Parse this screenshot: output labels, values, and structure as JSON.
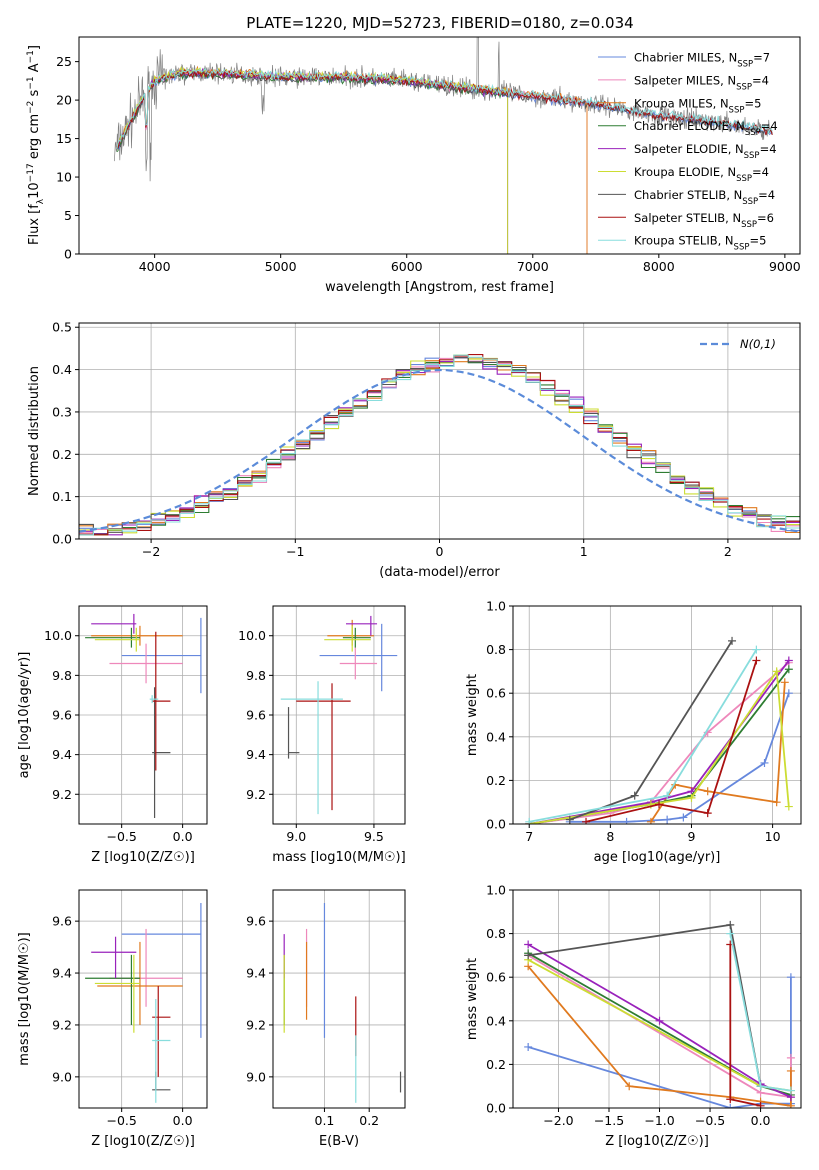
{
  "title": "PLATE=1220, MJD=52723, FIBERID=0180, z=0.034",
  "colors": {
    "chabrier_miles": "#6688dd",
    "salpeter_miles": "#ee88bb",
    "kroupa_miles": "#e07a1f",
    "chabrier_elodie": "#2e7d32",
    "salpeter_elodie": "#9922bb",
    "kroupa_elodie": "#ccdd33",
    "chabrier_stelib": "#555555",
    "salpeter_stelib": "#aa1111",
    "kroupa_stelib": "#88dddd",
    "data": "#808080",
    "normal": "#5b8bd9"
  },
  "chart_data": [
    {
      "type": "line",
      "panel": "spectrum",
      "title": "PLATE=1220, MJD=52723, FIBERID=0180, z=0.034",
      "xlabel": "wavelength [Angstrom, rest frame]",
      "ylabel_parts": [
        "Flux [f",
        "λ",
        "10",
        "−17",
        " erg cm",
        "−2",
        " s",
        "−1",
        " A",
        "−1",
        "]"
      ],
      "xlim": [
        3400,
        9120
      ],
      "ylim": [
        0,
        28.2
      ],
      "xticks": [
        4000,
        5000,
        6000,
        7000,
        8000,
        9000
      ],
      "yticks": [
        0,
        5,
        10,
        15,
        20,
        25
      ],
      "legend_position": "top-right",
      "data_continuum": {
        "x": [
          3680,
          3800,
          3900,
          4000,
          4200,
          4500,
          5000,
          5500,
          6000,
          6500,
          7000,
          7500,
          8000,
          8500,
          8900
        ],
        "y": [
          13,
          17,
          20,
          22.5,
          23.5,
          23.5,
          23,
          23,
          22.5,
          21.5,
          20.5,
          19.5,
          18,
          17,
          16
        ]
      },
      "legend": [
        {
          "key": "chabrier_miles",
          "prefix": "Chabrier MILES, N",
          "sub": "SSP",
          "suffix": "=7"
        },
        {
          "key": "salpeter_miles",
          "prefix": "Salpeter MILES, N",
          "sub": "SSP",
          "suffix": "=4"
        },
        {
          "key": "kroupa_miles",
          "prefix": "Kroupa MILES, N",
          "sub": "SSP",
          "suffix": "=5"
        },
        {
          "key": "chabrier_elodie",
          "prefix": "Chabrier ELODIE, N",
          "sub": "SSP",
          "suffix": "=4"
        },
        {
          "key": "salpeter_elodie",
          "prefix": "Salpeter ELODIE, N",
          "sub": "SSP",
          "suffix": "=4"
        },
        {
          "key": "kroupa_elodie",
          "prefix": "Kroupa ELODIE, N",
          "sub": "SSP",
          "suffix": "=4"
        },
        {
          "key": "chabrier_stelib",
          "prefix": "Chabrier STELIB, N",
          "sub": "SSP",
          "suffix": "=4"
        },
        {
          "key": "salpeter_stelib",
          "prefix": "Salpeter STELIB, N",
          "sub": "SSP",
          "suffix": "=6"
        },
        {
          "key": "kroupa_stelib",
          "prefix": "Kroupa STELIB, N",
          "sub": "SSP",
          "suffix": "=5"
        }
      ]
    },
    {
      "type": "histogram",
      "panel": "residuals",
      "xlabel": "(data-model)/error",
      "ylabel": "Normed distribution",
      "xlim": [
        -2.5,
        2.5
      ],
      "ylim": [
        0,
        0.51
      ],
      "xticks": [
        -2,
        -1,
        0,
        1,
        2
      ],
      "yticks": [
        0.0,
        0.1,
        0.2,
        0.3,
        0.4,
        0.5
      ],
      "bin_width": 0.1,
      "normal_label": "N(0,1)",
      "legend_position": "top-right"
    },
    {
      "type": "scatter",
      "panel": "age-vs-Z",
      "xlabel": "Z [log10(Z/Z☉)]",
      "ylabel": "age  [log10(age/yr)]",
      "xlim": [
        -0.85,
        0.2
      ],
      "ylim": [
        9.05,
        10.15
      ],
      "xticks": [
        -0.5,
        0.0
      ],
      "yticks": [
        9.2,
        9.4,
        9.6,
        9.8,
        10.0
      ],
      "points": [
        {
          "key": "chabrier_miles",
          "x": 0.15,
          "y": 9.9,
          "xerr": 0.0,
          "yerr": 0.19,
          "xr": [
            -0.5,
            0.15
          ]
        },
        {
          "key": "salpeter_miles",
          "x": -0.3,
          "y": 9.86,
          "xerr": 0.0,
          "yerr": 0.1,
          "xr": [
            -0.6,
            0.0
          ]
        },
        {
          "key": "kroupa_miles",
          "x": -0.35,
          "y": 10.0,
          "xerr": 0.0,
          "yerr": 0.05,
          "xr": [
            -0.75,
            0.0
          ]
        },
        {
          "key": "chabrier_elodie",
          "x": -0.42,
          "y": 9.99,
          "xerr": 0.0,
          "yerr": 0.05,
          "xr": [
            -0.8,
            -0.35
          ]
        },
        {
          "key": "salpeter_elodie",
          "x": -0.4,
          "y": 10.06,
          "xerr": 0.0,
          "yerr": 0.05,
          "xr": [
            -0.75,
            -0.38
          ]
        },
        {
          "key": "kroupa_elodie",
          "x": -0.38,
          "y": 9.98,
          "xerr": 0.0,
          "yerr": 0.06,
          "xr": [
            -0.72,
            -0.35
          ]
        },
        {
          "key": "chabrier_stelib",
          "x": -0.23,
          "y": 9.41,
          "xerr": 0.0,
          "yerr": 0.33,
          "xr": [
            -0.25,
            -0.1
          ]
        },
        {
          "key": "salpeter_stelib",
          "x": -0.22,
          "y": 9.67,
          "xerr": 0.0,
          "yerr": 0.35,
          "xr": [
            -0.25,
            -0.1
          ]
        },
        {
          "key": "kroupa_stelib",
          "x": -0.25,
          "y": 9.68,
          "xerr": 0.0,
          "yerr": 0.02,
          "xr": [
            -0.27,
            -0.2
          ]
        }
      ]
    },
    {
      "type": "scatter",
      "panel": "age-vs-mass",
      "xlabel": "mass [log10(M/M☉)]",
      "xlim": [
        8.85,
        9.7
      ],
      "ylim": [
        9.05,
        10.15
      ],
      "xticks": [
        9.0,
        9.5
      ],
      "yticks": [
        9.2,
        9.4,
        9.6,
        9.8,
        10.0
      ],
      "points": [
        {
          "key": "chabrier_miles",
          "x": 9.55,
          "y": 9.9,
          "xr": [
            9.15,
            9.65
          ],
          "yr": [
            9.72,
            10.06
          ]
        },
        {
          "key": "salpeter_miles",
          "x": 9.38,
          "y": 9.86,
          "xr": [
            9.28,
            9.52
          ],
          "yr": [
            9.78,
            9.94
          ]
        },
        {
          "key": "kroupa_miles",
          "x": 9.36,
          "y": 10.0,
          "xr": [
            9.2,
            9.5
          ],
          "yr": [
            9.95,
            10.08
          ]
        },
        {
          "key": "chabrier_elodie",
          "x": 9.38,
          "y": 9.99,
          "xr": [
            9.3,
            9.48
          ],
          "yr": [
            9.94,
            10.04
          ]
        },
        {
          "key": "salpeter_elodie",
          "x": 9.48,
          "y": 10.06,
          "xr": [
            9.32,
            9.52
          ],
          "yr": [
            10.0,
            10.1
          ]
        },
        {
          "key": "kroupa_elodie",
          "x": 9.36,
          "y": 9.98,
          "xr": [
            9.18,
            9.48
          ],
          "yr": [
            9.92,
            10.05
          ]
        },
        {
          "key": "chabrier_stelib",
          "x": 8.95,
          "y": 9.41,
          "xr": [
            8.95,
            9.02
          ],
          "yr": [
            9.38,
            9.64
          ]
        },
        {
          "key": "salpeter_stelib",
          "x": 9.23,
          "y": 9.67,
          "xr": [
            9.0,
            9.35
          ],
          "yr": [
            9.12,
            9.76
          ]
        },
        {
          "key": "kroupa_stelib",
          "x": 9.14,
          "y": 9.68,
          "xr": [
            8.9,
            9.3
          ],
          "yr": [
            9.1,
            9.77
          ]
        }
      ]
    },
    {
      "type": "line",
      "panel": "mass-weight-vs-age",
      "xlabel": "age  [log10(age/yr)]",
      "ylabel": "mass weight",
      "xlim": [
        6.8,
        10.35
      ],
      "ylim": [
        0,
        1.0
      ],
      "xticks": [
        7,
        8,
        9,
        10
      ],
      "yticks": [
        0.0,
        0.2,
        0.4,
        0.6,
        0.8,
        1.0
      ],
      "series": [
        {
          "key": "chabrier_miles",
          "x": [
            7.5,
            8.2,
            8.7,
            8.9,
            9.9,
            10.2
          ],
          "y": [
            0.01,
            0.01,
            0.02,
            0.03,
            0.28,
            0.6
          ]
        },
        {
          "key": "salpeter_miles",
          "x": [
            7.0,
            8.0,
            8.5,
            9.2,
            10.2
          ],
          "y": [
            0.0,
            0.05,
            0.1,
            0.42,
            0.74
          ]
        },
        {
          "key": "kroupa_miles",
          "x": [
            8.5,
            8.8,
            9.2,
            10.05,
            10.15
          ],
          "y": [
            0.01,
            0.18,
            0.15,
            0.1,
            0.65
          ]
        },
        {
          "key": "chabrier_elodie",
          "x": [
            7.0,
            8.5,
            9.0,
            10.2
          ],
          "y": [
            0.0,
            0.09,
            0.13,
            0.71
          ]
        },
        {
          "key": "salpeter_elodie",
          "x": [
            7.0,
            8.5,
            9.0,
            10.2
          ],
          "y": [
            0.0,
            0.1,
            0.15,
            0.75
          ]
        },
        {
          "key": "kroupa_elodie",
          "x": [
            7.0,
            8.5,
            9.0,
            10.05,
            10.2
          ],
          "y": [
            0.0,
            0.09,
            0.12,
            0.7,
            0.08
          ]
        },
        {
          "key": "chabrier_stelib",
          "x": [
            7.5,
            8.3,
            9.5
          ],
          "y": [
            0.02,
            0.13,
            0.84
          ]
        },
        {
          "key": "salpeter_stelib",
          "x": [
            7.7,
            8.6,
            9.2,
            9.8
          ],
          "y": [
            0.01,
            0.09,
            0.05,
            0.75
          ]
        },
        {
          "key": "kroupa_stelib",
          "x": [
            7.0,
            8.7,
            9.8
          ],
          "y": [
            0.01,
            0.13,
            0.8
          ]
        }
      ]
    },
    {
      "type": "scatter",
      "panel": "mass-vs-Z",
      "xlabel": "Z [log10(Z/Z☉)]",
      "ylabel": "mass [log10(M/M☉)]",
      "xlim": [
        -0.85,
        0.2
      ],
      "ylim": [
        8.88,
        9.72
      ],
      "xticks": [
        -0.5,
        0.0
      ],
      "yticks": [
        9.0,
        9.2,
        9.4,
        9.6
      ],
      "points": [
        {
          "key": "chabrier_miles",
          "x": 0.15,
          "y": 9.55,
          "xr": [
            -0.5,
            0.15
          ],
          "yr": [
            9.15,
            9.67
          ]
        },
        {
          "key": "salpeter_miles",
          "x": -0.3,
          "y": 9.38,
          "xr": [
            -0.6,
            0.0
          ],
          "yr": [
            9.27,
            9.57
          ]
        },
        {
          "key": "kroupa_miles",
          "x": -0.35,
          "y": 9.35,
          "xr": [
            -0.7,
            0.0
          ],
          "yr": [
            9.2,
            9.52
          ]
        },
        {
          "key": "chabrier_elodie",
          "x": -0.42,
          "y": 9.38,
          "xr": [
            -0.8,
            -0.35
          ],
          "yr": [
            9.2,
            9.47
          ]
        },
        {
          "key": "salpeter_elodie",
          "x": -0.55,
          "y": 9.48,
          "xr": [
            -0.75,
            -0.38
          ],
          "yr": [
            9.38,
            9.54
          ]
        },
        {
          "key": "kroupa_elodie",
          "x": -0.4,
          "y": 9.36,
          "xr": [
            -0.72,
            -0.35
          ],
          "yr": [
            9.17,
            9.47
          ]
        },
        {
          "key": "chabrier_stelib",
          "x": -0.22,
          "y": 8.95,
          "xr": [
            -0.25,
            -0.1
          ],
          "yr": [
            8.95,
            9.02
          ]
        },
        {
          "key": "salpeter_stelib",
          "x": -0.2,
          "y": 9.23,
          "xr": [
            -0.25,
            -0.1
          ],
          "yr": [
            9.0,
            9.35
          ]
        },
        {
          "key": "kroupa_stelib",
          "x": -0.22,
          "y": 9.14,
          "xr": [
            -0.25,
            -0.1
          ],
          "yr": [
            8.9,
            9.3
          ]
        }
      ]
    },
    {
      "type": "scatter",
      "panel": "mass-vs-ebv",
      "xlabel": "E(B-V)",
      "xlim": [
        -0.015,
        0.28
      ],
      "ylim": [
        8.88,
        9.72
      ],
      "xticks": [
        0.1,
        0.2
      ],
      "yticks": [
        9.0,
        9.2,
        9.4,
        9.6
      ],
      "points": [
        {
          "key": "chabrier_miles",
          "x": 0.1,
          "yr": [
            9.15,
            9.67
          ]
        },
        {
          "key": "salpeter_miles",
          "x": 0.06,
          "yr": [
            9.27,
            9.57
          ]
        },
        {
          "key": "kroupa_miles",
          "x": 0.06,
          "yr": [
            9.22,
            9.52
          ]
        },
        {
          "key": "chabrier_elodie",
          "x": 0.01,
          "yr": [
            9.2,
            9.47
          ]
        },
        {
          "key": "salpeter_elodie",
          "x": 0.01,
          "yr": [
            9.38,
            9.55
          ]
        },
        {
          "key": "kroupa_elodie",
          "x": 0.01,
          "yr": [
            9.17,
            9.47
          ]
        },
        {
          "key": "chabrier_stelib",
          "x": 0.27,
          "yr": [
            8.94,
            9.02
          ]
        },
        {
          "key": "salpeter_stelib",
          "x": 0.17,
          "yr": [
            9.08,
            9.31
          ]
        },
        {
          "key": "kroupa_stelib",
          "x": 0.17,
          "yr": [
            8.9,
            9.16
          ]
        }
      ]
    },
    {
      "type": "line",
      "panel": "mass-weight-vs-Z",
      "xlabel": "Z [log10(Z/Z☉)]",
      "ylabel": "mass weight",
      "xlim": [
        -2.45,
        0.4
      ],
      "ylim": [
        0,
        1.0
      ],
      "xticks": [
        -2.0,
        -1.5,
        -1.0,
        -0.5,
        0.0
      ],
      "yticks": [
        0.0,
        0.2,
        0.4,
        0.6,
        0.8,
        1.0
      ],
      "series": [
        {
          "key": "chabrier_miles",
          "x": [
            -2.3,
            -0.3,
            0.0,
            0.3,
            0.3
          ],
          "y": [
            0.28,
            0.0,
            0.02,
            0.02,
            0.6
          ]
        },
        {
          "key": "salpeter_miles",
          "x": [
            -2.3,
            0.0,
            0.3,
            0.3
          ],
          "y": [
            0.7,
            0.07,
            0.05,
            0.23
          ]
        },
        {
          "key": "kroupa_miles",
          "x": [
            -2.3,
            -1.3,
            -0.3,
            0.0,
            0.3,
            0.3
          ],
          "y": [
            0.65,
            0.1,
            0.05,
            0.03,
            0.01,
            0.17
          ]
        },
        {
          "key": "chabrier_elodie",
          "x": [
            -2.3,
            0.0,
            0.3
          ],
          "y": [
            0.71,
            0.1,
            0.06
          ]
        },
        {
          "key": "salpeter_elodie",
          "x": [
            -2.3,
            -1.0,
            0.0,
            0.3
          ],
          "y": [
            0.75,
            0.4,
            0.11,
            0.05
          ]
        },
        {
          "key": "kroupa_elodie",
          "x": [
            -2.3,
            0.0,
            0.3
          ],
          "y": [
            0.68,
            0.1,
            0.08
          ]
        },
        {
          "key": "chabrier_stelib",
          "x": [
            -2.3,
            -0.3,
            0.0
          ],
          "y": [
            0.7,
            0.84,
            0.1
          ]
        },
        {
          "key": "salpeter_stelib",
          "x": [
            -0.3,
            -0.3,
            0.0
          ],
          "y": [
            0.75,
            0.04,
            0.01
          ]
        },
        {
          "key": "kroupa_stelib",
          "x": [
            -0.3,
            0.0,
            0.3
          ],
          "y": [
            0.8,
            0.1,
            0.08
          ]
        }
      ]
    }
  ]
}
